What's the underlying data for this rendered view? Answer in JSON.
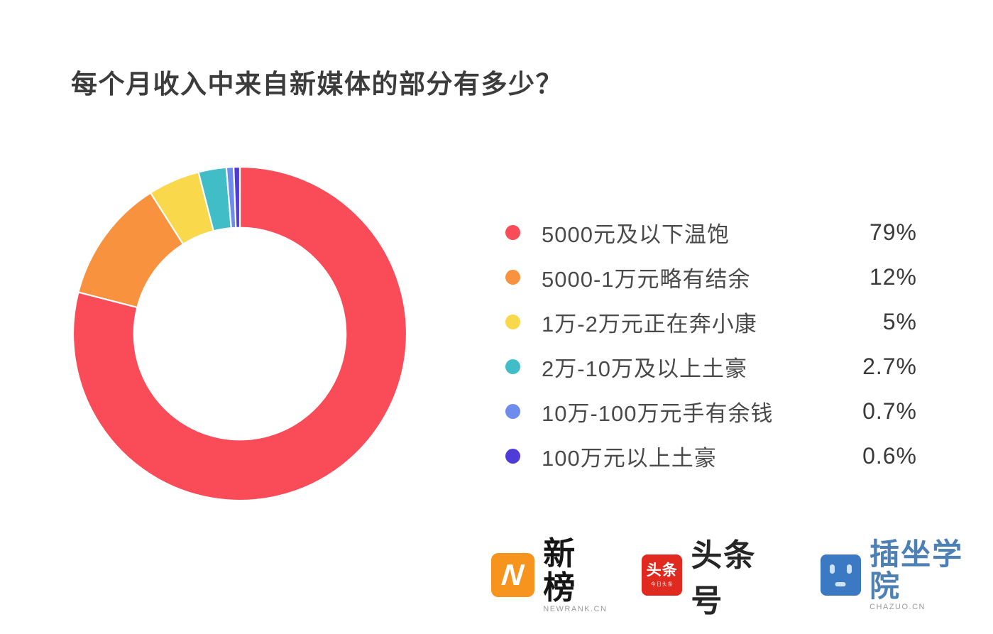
{
  "chart_data": {
    "type": "pie",
    "subtype": "donut",
    "title": "每个月收入中来自新媒体的部分有多少？",
    "labels": [
      "5000元及以下温饱",
      "5000-1万元略有结余",
      "1万-2万元正在奔小康",
      "2万-10万及以上土豪",
      "10万-100万元手有余钱",
      "100万元以上土豪"
    ],
    "values": [
      79,
      12,
      5,
      2.7,
      0.7,
      0.6
    ],
    "value_labels": [
      "79%",
      "12%",
      "5%",
      "2.7%",
      "0.7%",
      "0.6%"
    ],
    "colors": [
      "#F94B58",
      "#F8923E",
      "#F9D94B",
      "#41BDC8",
      "#6E8CEC",
      "#4F3BD8"
    ],
    "start_angle_deg": 0,
    "direction": "clockwise",
    "inner_radius_ratio": 0.635,
    "slice_gap_color": "#ffffff",
    "legend_position": "right"
  },
  "footer": {
    "logos": [
      {
        "zh": "新榜",
        "sub": "NEWRANK.CN",
        "icon_letter": "N",
        "icon_color": "#F7941D"
      },
      {
        "zh": "头条号",
        "icon_line1": "头条",
        "icon_line2": "今日头条",
        "icon_color": "#E02A1F"
      },
      {
        "zh": "插坐学院",
        "sub": "CHAZUO.CN",
        "icon_color": "#3B79C3"
      }
    ]
  }
}
